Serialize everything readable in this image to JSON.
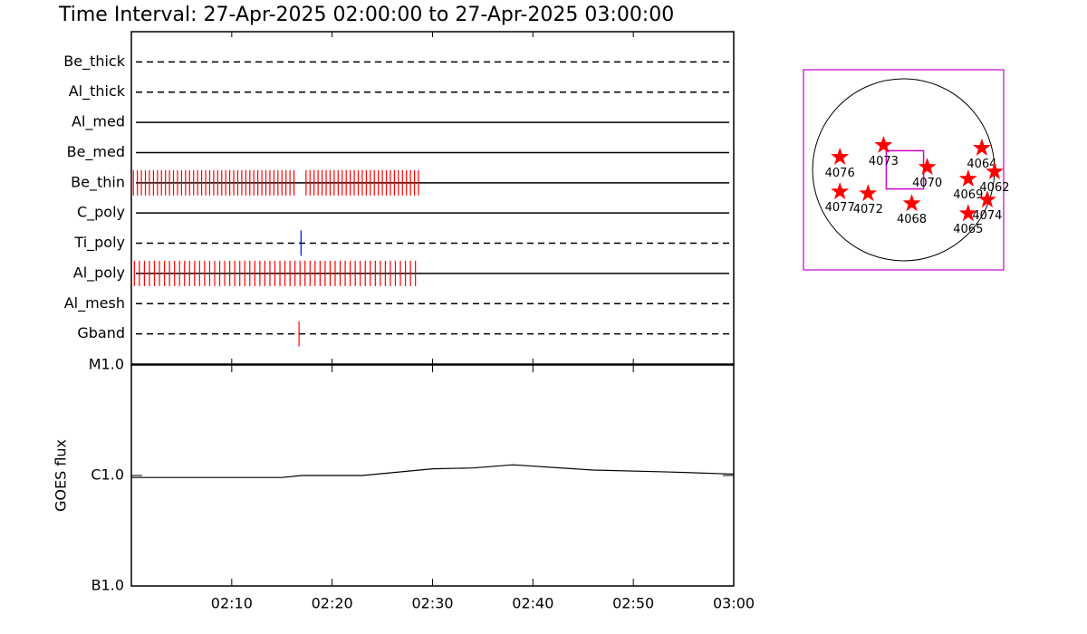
{
  "title": "Time Interval: 27-Apr-2025 02:00:00 to 27-Apr-2025 03:00:00",
  "chart_data": [
    {
      "type": "timeline",
      "xlim": [
        0,
        60
      ],
      "xticks": [
        {
          "value": 10,
          "label": "02:10"
        },
        {
          "value": 20,
          "label": "02:20"
        },
        {
          "value": 30,
          "label": "02:30"
        },
        {
          "value": 40,
          "label": "02:40"
        },
        {
          "value": 50,
          "label": "02:50"
        },
        {
          "value": 60,
          "label": "03:00"
        }
      ],
      "filters": [
        {
          "name": "Be_thick",
          "style": "dashed",
          "color": "#ff0000",
          "times": []
        },
        {
          "name": "Al_thick",
          "style": "dashed",
          "color": "#ff0000",
          "times": []
        },
        {
          "name": "Al_med",
          "style": "solid",
          "color": "#ff0000",
          "times": []
        },
        {
          "name": "Be_med",
          "style": "solid",
          "color": "#ff0000",
          "times": []
        },
        {
          "name": "Be_thin",
          "style": "solid",
          "color": "#ff0000",
          "times": [
            0.2,
            0.6,
            1,
            1.4,
            1.8,
            2.2,
            2.6,
            3,
            3.4,
            3.8,
            4.2,
            4.6,
            5,
            5.4,
            5.8,
            6.2,
            6.6,
            7,
            7.4,
            7.8,
            8.2,
            8.6,
            9,
            9.4,
            9.8,
            10.2,
            10.6,
            11,
            11.4,
            11.8,
            12.2,
            12.6,
            13,
            13.4,
            13.8,
            14.2,
            14.6,
            15,
            15.4,
            15.8,
            16.2,
            17.4,
            17.8,
            18.2,
            18.6,
            19,
            19.4,
            19.8,
            20.2,
            20.6,
            21,
            21.4,
            21.8,
            22.2,
            22.6,
            23,
            23.4,
            23.8,
            24.2,
            24.6,
            25,
            25.4,
            25.8,
            26.2,
            26.6,
            27,
            27.4,
            27.8,
            28.2,
            28.6
          ]
        },
        {
          "name": "C_poly",
          "style": "solid",
          "color": "#ff0000",
          "times": []
        },
        {
          "name": "Ti_poly",
          "style": "dashed",
          "color": "#0000ff",
          "times": [
            16.9
          ]
        },
        {
          "name": "Al_poly",
          "style": "solid",
          "color": "#ff0000",
          "times": [
            0.3,
            0.8,
            1.3,
            1.8,
            2.3,
            2.8,
            3.3,
            3.8,
            4.3,
            4.8,
            5.3,
            5.8,
            6.3,
            6.8,
            7.3,
            7.8,
            8.3,
            8.8,
            9.3,
            9.8,
            10.3,
            10.8,
            11.3,
            11.8,
            12.3,
            12.8,
            13.3,
            13.8,
            14.3,
            14.8,
            15.3,
            15.8,
            16.3,
            16.8,
            17.3,
            17.8,
            18.3,
            18.8,
            19.3,
            19.8,
            20.3,
            20.8,
            21.3,
            21.8,
            22.3,
            22.8,
            23.3,
            23.8,
            24.3,
            24.8,
            25.3,
            25.8,
            26.3,
            26.8,
            27.3,
            27.8,
            28.3
          ]
        },
        {
          "name": "Al_mesh",
          "style": "dashed",
          "color": "#ff0000",
          "times": []
        },
        {
          "name": "Gband",
          "style": "dashed",
          "color": "#ff0000",
          "times": [
            16.7
          ]
        }
      ]
    },
    {
      "type": "line",
      "ylabel": "GOES flux",
      "log": true,
      "color": "#000000",
      "xlim": [
        0,
        60
      ],
      "xticks": [
        {
          "value": 10,
          "label": "02:10"
        },
        {
          "value": 20,
          "label": "02:20"
        },
        {
          "value": 30,
          "label": "02:30"
        },
        {
          "value": 40,
          "label": "02:40"
        },
        {
          "value": 50,
          "label": "02:50"
        },
        {
          "value": 60,
          "label": "03:00"
        }
      ],
      "ylim": [
        1e-07,
        1e-05
      ],
      "yticks": [
        {
          "value": 1e-07,
          "label": "B1.0"
        },
        {
          "value": 1e-06,
          "label": "C1.0"
        },
        {
          "value": 1e-05,
          "label": "M1.0"
        }
      ],
      "x": [
        0,
        15,
        17,
        23,
        30,
        34,
        38,
        46,
        53,
        60
      ],
      "values": [
        9.6e-07,
        9.6e-07,
        1e-06,
        1e-06,
        1.15e-06,
        1.17e-06,
        1.25e-06,
        1.12e-06,
        1.08e-06,
        1.03e-06
      ]
    },
    {
      "type": "map",
      "box_color": "#cc00cc",
      "marker_color": "#ff0000",
      "xlim": [
        -1.1,
        1.1
      ],
      "ylim": [
        -1.1,
        1.1
      ],
      "fov": {
        "x": [
          -0.19,
          0.22
        ],
        "y": [
          -0.21,
          0.21
        ]
      },
      "regions": [
        {
          "label": "4076",
          "x": -0.7,
          "y": 0.14
        },
        {
          "label": "4073",
          "x": -0.22,
          "y": 0.27
        },
        {
          "label": "4070",
          "x": 0.26,
          "y": 0.03
        },
        {
          "label": "4064",
          "x": 0.86,
          "y": 0.24
        },
        {
          "label": "4062",
          "x": 1.0,
          "y": -0.02
        },
        {
          "label": "4069",
          "x": 0.71,
          "y": -0.1
        },
        {
          "label": "4074",
          "x": 0.92,
          "y": -0.33
        },
        {
          "label": "4065",
          "x": 0.71,
          "y": -0.48
        },
        {
          "label": "4068",
          "x": 0.09,
          "y": -0.37
        },
        {
          "label": "4072",
          "x": -0.39,
          "y": -0.26
        },
        {
          "label": "4077",
          "x": -0.7,
          "y": -0.24
        }
      ]
    }
  ]
}
